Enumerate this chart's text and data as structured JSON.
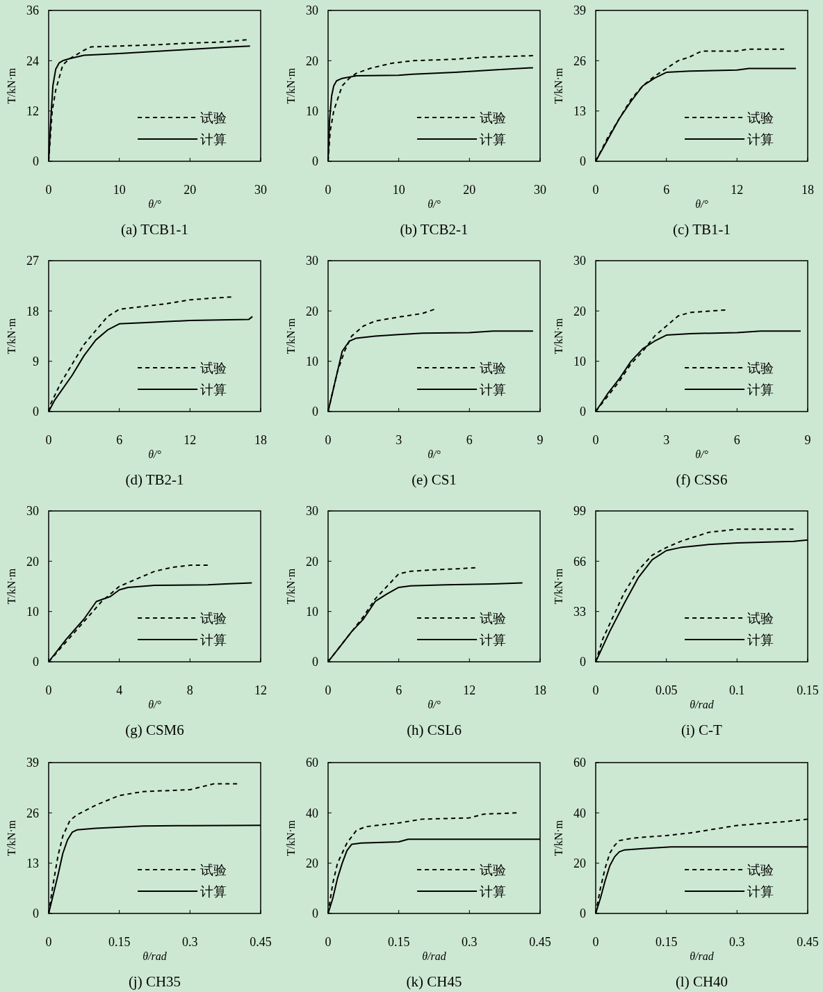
{
  "chart_data": [
    {
      "type": "line",
      "title": "(a) TCB1-1",
      "xlabel": "θ/°",
      "ylabel": "T/kN·m",
      "xlim": [
        0,
        30
      ],
      "xticks": [
        0,
        10,
        20,
        30
      ],
      "ylim": [
        0,
        36
      ],
      "yticks": [
        0,
        12,
        24,
        36
      ],
      "legend": "bottom right",
      "series": [
        {
          "name": "试验",
          "color": "#000000",
          "line_style": "dashed",
          "x": [
            0,
            0.5,
            1,
            1.5,
            2,
            3,
            4,
            5,
            6,
            10,
            15,
            20,
            25,
            28
          ],
          "values": [
            0,
            12,
            17,
            20,
            23,
            24.5,
            25.5,
            26.5,
            27.3,
            27.5,
            27.8,
            28.2,
            28.5,
            29
          ]
        },
        {
          "name": "计算",
          "color": "#000000",
          "line_style": "solid",
          "x": [
            0,
            0.3,
            0.6,
            1,
            1.5,
            2,
            3,
            5,
            10,
            15,
            20,
            25,
            28.5
          ],
          "values": [
            0,
            10,
            18,
            22,
            23.5,
            24,
            24.5,
            25.3,
            25.7,
            26.2,
            26.7,
            27.2,
            27.5
          ]
        }
      ]
    },
    {
      "type": "line",
      "title": "(b) TCB2-1",
      "xlabel": "θ/°",
      "ylabel": "T/kN·m",
      "xlim": [
        0,
        30
      ],
      "xticks": [
        0,
        10,
        20,
        30
      ],
      "ylim": [
        0,
        30
      ],
      "yticks": [
        0,
        10,
        20,
        30
      ],
      "legend": "bottom right",
      "series": [
        {
          "name": "试验",
          "color": "#000000",
          "line_style": "dashed",
          "x": [
            0,
            0.3,
            0.8,
            1.5,
            2,
            3,
            4,
            6,
            9,
            12,
            18,
            22,
            29
          ],
          "values": [
            0,
            6,
            10,
            13,
            15,
            16.5,
            17.5,
            18.5,
            19.5,
            20,
            20.3,
            20.7,
            21
          ]
        },
        {
          "name": "计算",
          "color": "#000000",
          "line_style": "solid",
          "x": [
            0,
            0.2,
            0.5,
            0.8,
            1.2,
            2,
            4,
            10,
            12,
            18,
            24,
            29
          ],
          "values": [
            0,
            8,
            13,
            15,
            16,
            16.5,
            17,
            17.1,
            17.3,
            17.7,
            18.2,
            18.6
          ]
        }
      ]
    },
    {
      "type": "line",
      "title": "(c) TB1-1",
      "xlabel": "θ/°",
      "ylabel": "T/kN·m",
      "xlim": [
        0,
        18
      ],
      "xticks": [
        0,
        6,
        12,
        18
      ],
      "ylim": [
        0,
        39
      ],
      "yticks": [
        0,
        13,
        26,
        39
      ],
      "legend": "bottom right",
      "series": [
        {
          "name": "试验",
          "color": "#000000",
          "line_style": "dashed",
          "x": [
            0,
            1,
            2,
            3,
            4,
            5,
            6,
            7,
            8,
            9,
            12,
            13,
            16
          ],
          "values": [
            0,
            6,
            11,
            16,
            19.5,
            22,
            24,
            26,
            27,
            28.5,
            28.5,
            29,
            29
          ]
        },
        {
          "name": "计算",
          "color": "#000000",
          "line_style": "solid",
          "x": [
            0,
            1,
            2,
            3,
            4,
            5,
            6,
            8,
            12,
            13,
            17
          ],
          "values": [
            0,
            5.5,
            11,
            15.5,
            19.5,
            21.5,
            23,
            23.3,
            23.6,
            24,
            24
          ]
        }
      ]
    },
    {
      "type": "line",
      "title": "(d) TB2-1",
      "xlabel": "θ/°",
      "ylabel": "T/kN·m",
      "xlim": [
        0,
        18
      ],
      "xticks": [
        0,
        6,
        12,
        18
      ],
      "ylim": [
        0,
        27
      ],
      "yticks": [
        0,
        9,
        18,
        27
      ],
      "legend": "bottom right",
      "series": [
        {
          "name": "试验",
          "color": "#000000",
          "line_style": "dashed",
          "x": [
            0,
            0.2,
            1,
            2,
            3,
            4,
            5,
            6,
            8,
            10,
            12,
            14,
            15.5
          ],
          "values": [
            0,
            1.5,
            5,
            8.5,
            12,
            14.5,
            17,
            18.3,
            18.8,
            19.3,
            20,
            20.3,
            20.5
          ]
        },
        {
          "name": "计算",
          "color": "#000000",
          "line_style": "solid",
          "x": [
            0,
            0.5,
            1,
            2,
            3,
            4,
            5,
            6,
            8,
            12,
            17,
            17.3
          ],
          "values": [
            0,
            2,
            3.5,
            6.5,
            10,
            12.8,
            14.6,
            15.7,
            15.9,
            16.3,
            16.5,
            17
          ]
        }
      ]
    },
    {
      "type": "line",
      "title": "(e) CS1",
      "xlabel": "θ/°",
      "ylabel": "T/kN·m",
      "xlim": [
        0,
        9
      ],
      "xticks": [
        0,
        3,
        6,
        9
      ],
      "ylim": [
        0,
        30
      ],
      "yticks": [
        0,
        10,
        20,
        30
      ],
      "legend": "bottom right",
      "series": [
        {
          "name": "试验",
          "color": "#000000",
          "line_style": "dashed",
          "x": [
            0,
            0.2,
            0.4,
            0.7,
            1,
            1.5,
            2,
            3,
            4,
            4.5
          ],
          "values": [
            0,
            4,
            8,
            12,
            15,
            17,
            18,
            18.8,
            19.5,
            20.3
          ]
        },
        {
          "name": "计算",
          "color": "#000000",
          "line_style": "solid",
          "x": [
            0,
            0.2,
            0.4,
            0.6,
            0.9,
            1.2,
            2,
            3,
            4,
            6,
            7,
            8.7
          ],
          "values": [
            0,
            4,
            8,
            12,
            14,
            14.6,
            15,
            15.3,
            15.6,
            15.7,
            16,
            16
          ]
        }
      ]
    },
    {
      "type": "line",
      "title": "(f) CSS6",
      "xlabel": "θ/°",
      "ylabel": "T/kN·m",
      "xlim": [
        0,
        9
      ],
      "xticks": [
        0,
        3,
        6,
        9
      ],
      "ylim": [
        0,
        30
      ],
      "yticks": [
        0,
        10,
        20,
        30
      ],
      "legend": "bottom right",
      "series": [
        {
          "name": "试验",
          "color": "#000000",
          "line_style": "dashed",
          "x": [
            0,
            0.5,
            1,
            1.5,
            2,
            2.5,
            3,
            3.5,
            4,
            5.5
          ],
          "values": [
            0,
            3,
            6,
            9.5,
            12,
            15,
            17,
            19,
            19.7,
            20.2
          ]
        },
        {
          "name": "计算",
          "color": "#000000",
          "line_style": "solid",
          "x": [
            0,
            0.5,
            1,
            1.5,
            2,
            2.5,
            3,
            4,
            6,
            7,
            8.7
          ],
          "values": [
            0,
            3.5,
            6.5,
            10,
            12.5,
            14,
            15.2,
            15.5,
            15.7,
            16,
            16
          ]
        }
      ]
    },
    {
      "type": "line",
      "title": "(g) CSM6",
      "xlabel": "θ/°",
      "ylabel": "T/kN·m",
      "xlim": [
        0,
        12
      ],
      "xticks": [
        0,
        4,
        8,
        12
      ],
      "ylim": [
        0,
        30
      ],
      "yticks": [
        0,
        10,
        20,
        30
      ],
      "legend": "bottom right",
      "series": [
        {
          "name": "试验",
          "color": "#000000",
          "line_style": "dashed",
          "x": [
            0,
            1,
            2,
            3,
            4,
            5,
            6,
            7,
            8,
            9
          ],
          "values": [
            0,
            4,
            8,
            12,
            15,
            16.5,
            18,
            18.8,
            19.2,
            19.2
          ]
        },
        {
          "name": "计算",
          "color": "#000000",
          "line_style": "solid",
          "x": [
            0,
            1,
            2,
            2.7,
            3.5,
            4,
            4.5,
            6,
            9,
            10,
            11.5
          ],
          "values": [
            0,
            4.5,
            8.5,
            12,
            13,
            14.3,
            14.8,
            15.2,
            15.3,
            15.5,
            15.7
          ]
        }
      ]
    },
    {
      "type": "line",
      "title": "(h) CSL6",
      "xlabel": "θ/°",
      "ylabel": "T/kN·m",
      "xlim": [
        0,
        18
      ],
      "xticks": [
        0,
        6,
        12,
        18
      ],
      "ylim": [
        0,
        30
      ],
      "yticks": [
        0,
        10,
        20,
        30
      ],
      "legend": "bottom right",
      "series": [
        {
          "name": "试验",
          "color": "#000000",
          "line_style": "dashed",
          "x": [
            0,
            1,
            2,
            3,
            4,
            5,
            6,
            7,
            9,
            11,
            12.5
          ],
          "values": [
            0,
            3,
            6,
            9,
            12.5,
            15,
            17.5,
            18,
            18.3,
            18.5,
            18.7
          ]
        },
        {
          "name": "计算",
          "color": "#000000",
          "line_style": "solid",
          "x": [
            0,
            1,
            2,
            3,
            4,
            5,
            6,
            7,
            10,
            14,
            16.5
          ],
          "values": [
            0,
            3,
            6,
            8.5,
            12,
            13.5,
            14.8,
            15.1,
            15.3,
            15.5,
            15.7
          ]
        }
      ]
    },
    {
      "type": "line",
      "title": "(i) C-T",
      "xlabel": "θ/rad",
      "ylabel": "T/kN·m",
      "xlim": [
        0,
        0.15
      ],
      "xticks": [
        0,
        0.05,
        0.1,
        0.15
      ],
      "ylim": [
        0,
        99
      ],
      "yticks": [
        0,
        33,
        66,
        99
      ],
      "legend": "bottom right",
      "series": [
        {
          "name": "试验",
          "color": "#000000",
          "line_style": "dashed",
          "x": [
            0,
            0.005,
            0.01,
            0.02,
            0.03,
            0.04,
            0.05,
            0.06,
            0.07,
            0.08,
            0.1,
            0.14
          ],
          "values": [
            0,
            15,
            25,
            45,
            60,
            70,
            75,
            79,
            82,
            85,
            87,
            87
          ]
        },
        {
          "name": "计算",
          "color": "#000000",
          "line_style": "solid",
          "x": [
            0,
            0.005,
            0.01,
            0.02,
            0.03,
            0.04,
            0.05,
            0.06,
            0.08,
            0.1,
            0.14,
            0.15
          ],
          "values": [
            0,
            10,
            20,
            38,
            55,
            67,
            73,
            75,
            77,
            78,
            79,
            80
          ]
        }
      ]
    },
    {
      "type": "line",
      "title": "(j) CH35",
      "xlabel": "θ/rad",
      "ylabel": "T/kN·m",
      "xlim": [
        0,
        0.45
      ],
      "xticks": [
        0,
        0.15,
        0.3,
        0.45
      ],
      "ylim": [
        0,
        39
      ],
      "yticks": [
        0,
        13,
        26,
        39
      ],
      "legend": "bottom right",
      "series": [
        {
          "name": "试验",
          "color": "#000000",
          "line_style": "dashed",
          "x": [
            0,
            0.01,
            0.02,
            0.03,
            0.045,
            0.06,
            0.1,
            0.15,
            0.2,
            0.3,
            0.35,
            0.4
          ],
          "values": [
            0,
            8,
            15,
            20,
            24,
            25.5,
            28,
            30.5,
            31.5,
            32,
            33.5,
            33.5
          ]
        },
        {
          "name": "计算",
          "color": "#000000",
          "line_style": "solid",
          "x": [
            0,
            0.01,
            0.02,
            0.03,
            0.04,
            0.05,
            0.06,
            0.1,
            0.2,
            0.3,
            0.45
          ],
          "values": [
            0,
            5,
            10,
            15.5,
            19,
            21,
            21.6,
            22,
            22.6,
            22.7,
            22.8
          ]
        }
      ]
    },
    {
      "type": "line",
      "title": "(k) CH45",
      "xlabel": "θ/rad",
      "ylabel": "T/kN·m",
      "xlim": [
        0,
        0.45
      ],
      "xticks": [
        0,
        0.15,
        0.3,
        0.45
      ],
      "ylim": [
        0,
        60
      ],
      "yticks": [
        0,
        20,
        40,
        60
      ],
      "legend": "bottom right",
      "series": [
        {
          "name": "试验",
          "color": "#000000",
          "line_style": "dashed",
          "x": [
            0,
            0.01,
            0.02,
            0.04,
            0.06,
            0.08,
            0.15,
            0.2,
            0.3,
            0.33,
            0.4
          ],
          "values": [
            0,
            12,
            20,
            28,
            33,
            34.5,
            36,
            37.5,
            38,
            39.5,
            40
          ]
        },
        {
          "name": "计算",
          "color": "#000000",
          "line_style": "solid",
          "x": [
            0,
            0.01,
            0.02,
            0.03,
            0.04,
            0.05,
            0.07,
            0.15,
            0.17,
            0.45
          ],
          "values": [
            0,
            6,
            14,
            20,
            25,
            27.5,
            28,
            28.5,
            29.5,
            29.5
          ]
        }
      ]
    },
    {
      "type": "line",
      "title": "(l) CH40",
      "xlabel": "θ/rad",
      "ylabel": "T/kN·m",
      "xlim": [
        0,
        0.45
      ],
      "xticks": [
        0,
        0.15,
        0.3,
        0.45
      ],
      "ylim": [
        0,
        60
      ],
      "yticks": [
        0,
        20,
        40,
        60
      ],
      "legend": "bottom right",
      "series": [
        {
          "name": "试验",
          "color": "#000000",
          "line_style": "dashed",
          "x": [
            0,
            0.01,
            0.02,
            0.03,
            0.04,
            0.05,
            0.08,
            0.15,
            0.2,
            0.25,
            0.3,
            0.4,
            0.45
          ],
          "values": [
            0,
            10,
            18,
            24,
            27,
            29,
            30,
            31,
            32,
            33.5,
            35,
            36.5,
            37.5
          ]
        },
        {
          "name": "计算",
          "color": "#000000",
          "line_style": "solid",
          "x": [
            0,
            0.01,
            0.02,
            0.03,
            0.04,
            0.05,
            0.06,
            0.1,
            0.16,
            0.45
          ],
          "values": [
            0,
            6,
            13,
            19,
            22.5,
            24.5,
            25.2,
            25.8,
            26.5,
            26.5
          ]
        }
      ]
    }
  ]
}
